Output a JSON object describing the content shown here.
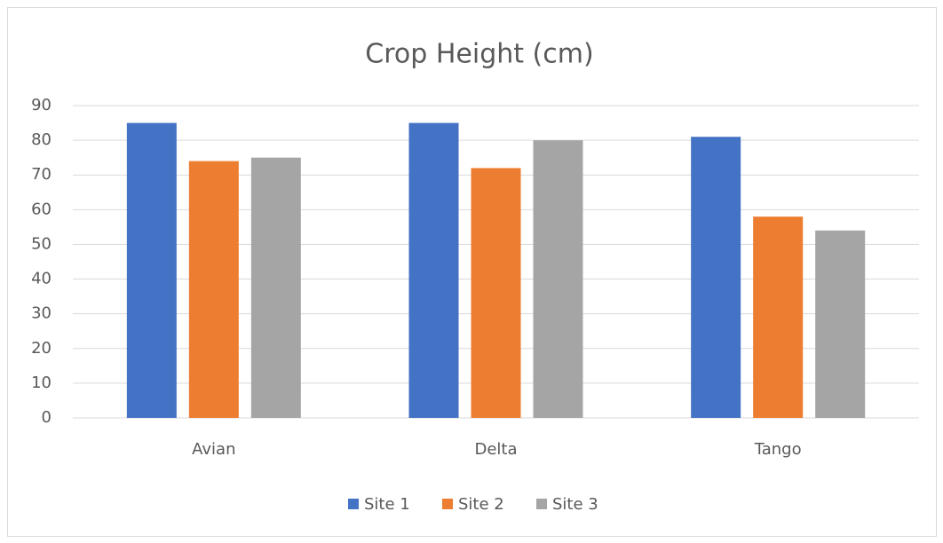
{
  "chart_data": {
    "type": "bar",
    "title": "Crop Height (cm)",
    "categories": [
      "Avian",
      "Delta",
      "Tango"
    ],
    "series": [
      {
        "name": "Site 1",
        "color": "#4472c4",
        "values": [
          85,
          85,
          81
        ]
      },
      {
        "name": "Site 2",
        "color": "#ed7d31",
        "values": [
          74,
          72,
          58
        ]
      },
      {
        "name": "Site 3",
        "color": "#a5a5a5",
        "values": [
          75,
          80,
          54
        ]
      }
    ],
    "ylim": [
      0,
      90
    ],
    "yticks": [
      0,
      10,
      20,
      30,
      40,
      50,
      60,
      70,
      80,
      90
    ],
    "grid": true,
    "legend": "bottom"
  }
}
